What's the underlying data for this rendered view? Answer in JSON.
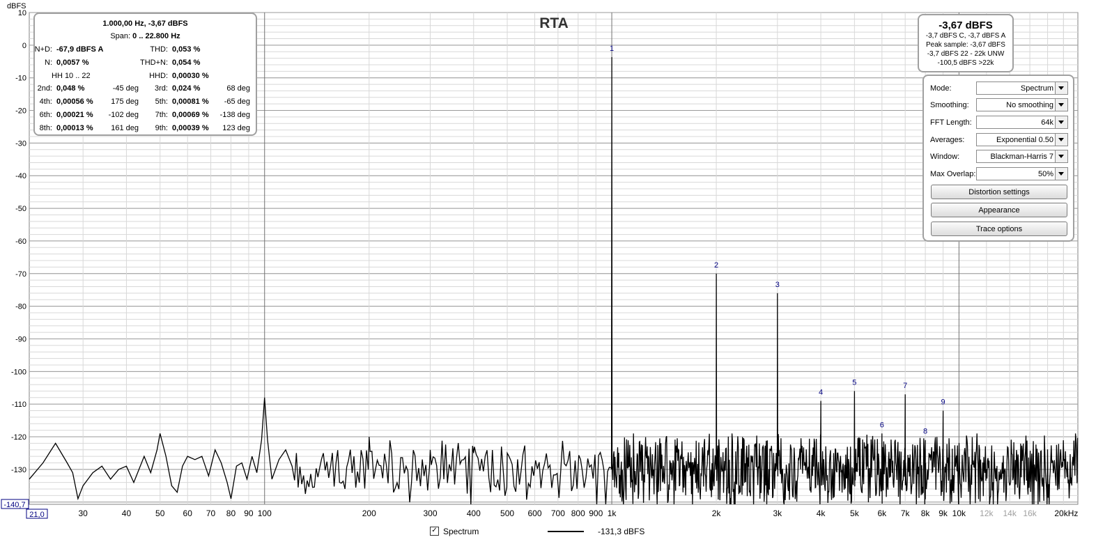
{
  "chart_data": {
    "type": "line",
    "title": "RTA",
    "ylabel": "dBFS",
    "y_ticks": [
      "10",
      "0",
      "-10",
      "-20",
      "-30",
      "-40",
      "-50",
      "-60",
      "-70",
      "-80",
      "-90",
      "-100",
      "-110",
      "-120",
      "-130"
    ],
    "x_ticks": [
      "30",
      "40",
      "50",
      "60",
      "70",
      "80",
      "90",
      "100",
      "200",
      "300",
      "400",
      "500",
      "600",
      "700",
      "800",
      "900",
      "1k",
      "2k",
      "3k",
      "4k",
      "5k",
      "6k",
      "7k",
      "8k",
      "9k",
      "10k",
      "12k",
      "14k",
      "16k",
      "20kHz"
    ],
    "x_tick_values": [
      30,
      40,
      50,
      60,
      70,
      80,
      90,
      100,
      200,
      300,
      400,
      500,
      600,
      700,
      800,
      900,
      1000,
      2000,
      3000,
      4000,
      5000,
      6000,
      7000,
      8000,
      9000,
      10000,
      12000,
      14000,
      16000,
      20000
    ],
    "x_range": [
      21,
      22000
    ],
    "y_range": [
      -140.7,
      10
    ],
    "x_scale": "log",
    "x_min_readout": "21,0",
    "y_min_readout": "-140,7",
    "series": [
      {
        "name": "Spectrum",
        "color": "#000000",
        "noise_floor_dbfs": -130,
        "low_freq_points": [
          [
            21,
            -133
          ],
          [
            23,
            -128
          ],
          [
            25,
            -122
          ],
          [
            27,
            -128
          ],
          [
            28,
            -131
          ],
          [
            29,
            -139
          ],
          [
            30,
            -135
          ],
          [
            32,
            -131
          ],
          [
            34,
            -129
          ],
          [
            36,
            -133
          ],
          [
            38,
            -130
          ],
          [
            40,
            -129
          ],
          [
            42,
            -134
          ],
          [
            45,
            -126
          ],
          [
            47,
            -131
          ],
          [
            49,
            -124
          ],
          [
            50,
            -119
          ],
          [
            52,
            -126
          ],
          [
            54,
            -135
          ],
          [
            56,
            -137
          ],
          [
            58,
            -129
          ],
          [
            60,
            -126
          ],
          [
            63,
            -127
          ],
          [
            66,
            -126
          ],
          [
            69,
            -132
          ],
          [
            72,
            -124
          ],
          [
            75,
            -128
          ],
          [
            78,
            -134
          ],
          [
            80,
            -139
          ],
          [
            83,
            -129
          ],
          [
            86,
            -128
          ],
          [
            89,
            -133
          ],
          [
            92,
            -126
          ],
          [
            95,
            -131
          ],
          [
            98,
            -121
          ],
          [
            100,
            -108
          ],
          [
            102,
            -121
          ],
          [
            105,
            -133
          ],
          [
            110,
            -127
          ],
          [
            115,
            -124
          ],
          [
            120,
            -129
          ]
        ],
        "peaks": [
          {
            "label": "1",
            "freq": 1000,
            "dbfs": -3.67
          },
          {
            "label": "2",
            "freq": 2000,
            "dbfs": -70
          },
          {
            "label": "3",
            "freq": 3000,
            "dbfs": -76
          },
          {
            "label": "4",
            "freq": 4000,
            "dbfs": -109
          },
          {
            "label": "5",
            "freq": 5000,
            "dbfs": -106
          },
          {
            "label": "6",
            "freq": 6000,
            "dbfs": -119
          },
          {
            "label": "7",
            "freq": 7000,
            "dbfs": -107
          },
          {
            "label": "8",
            "freq": 8000,
            "dbfs": -121
          },
          {
            "label": "9",
            "freq": 9000,
            "dbfs": -112
          }
        ],
        "spurs": [
          [
            200,
            -120
          ],
          [
            300,
            -124
          ],
          [
            400,
            -125
          ],
          [
            500,
            -125
          ]
        ]
      }
    ]
  },
  "distortion_panel": {
    "header": "1.000,00 Hz, -3,67 dBFS",
    "span_label": "Span:",
    "span_value": "0 .. 22.800 Hz",
    "nd_label": "N+D:",
    "nd_value": "-67,9 dBFS A",
    "thd_label": "THD:",
    "thd_value": "0,053 %",
    "n_label": "N:",
    "n_value": "0,0057 %",
    "thdn_label": "THD+N:",
    "thdn_value": "0,054 %",
    "hh_label": "HH 10 .. 22",
    "hhd_label": "HHD:",
    "hhd_value": "0,00030 %",
    "harmonics": [
      {
        "l_label": "2nd:",
        "l_value": "0,048 %",
        "l_deg": "-45 deg",
        "r_label": "3rd:",
        "r_value": "0,024 %",
        "r_deg": "68 deg"
      },
      {
        "l_label": "4th:",
        "l_value": "0,00056 %",
        "l_deg": "175 deg",
        "r_label": "5th:",
        "r_value": "0,00081 %",
        "r_deg": "-65 deg"
      },
      {
        "l_label": "6th:",
        "l_value": "0,00021 %",
        "l_deg": "-102 deg",
        "r_label": "7th:",
        "r_value": "0,00069 %",
        "r_deg": "-138 deg"
      },
      {
        "l_label": "8th:",
        "l_value": "0,00013 %",
        "l_deg": "161 deg",
        "r_label": "9th:",
        "r_value": "0,00039 %",
        "r_deg": "123 deg"
      }
    ]
  },
  "level_panel": {
    "main": "-3,67 dBFS",
    "line1": "-3,7 dBFS C, -3,7 dBFS A",
    "line2": "Peak sample: -3,67 dBFS",
    "line3": "-3,7 dBFS 22 - 22k UNW",
    "line4": "-100,5 dBFS >22k"
  },
  "controls": {
    "mode_label": "Mode:",
    "mode_value": "Spectrum",
    "smoothing_label": "Smoothing:",
    "smoothing_value": "No  smoothing",
    "fft_label": "FFT Length:",
    "fft_value": "64k",
    "averages_label": "Averages:",
    "averages_value": "Exponential 0.50",
    "window_label": "Window:",
    "window_value": "Blackman-Harris 7",
    "overlap_label": "Max Overlap:",
    "overlap_value": "50%",
    "distortion_button": "Distortion settings",
    "appearance_button": "Appearance",
    "trace_button": "Trace options"
  },
  "legend": {
    "checked_mark": "✓",
    "trace_name": "Spectrum",
    "trace_value": "-131,3 dBFS"
  },
  "colors": {
    "grid_major": "#9a9a9a",
    "grid_minor": "#d8d8d8",
    "trace": "#000000",
    "peak_label": "#000080",
    "panel_border": "#a0a0a0"
  }
}
